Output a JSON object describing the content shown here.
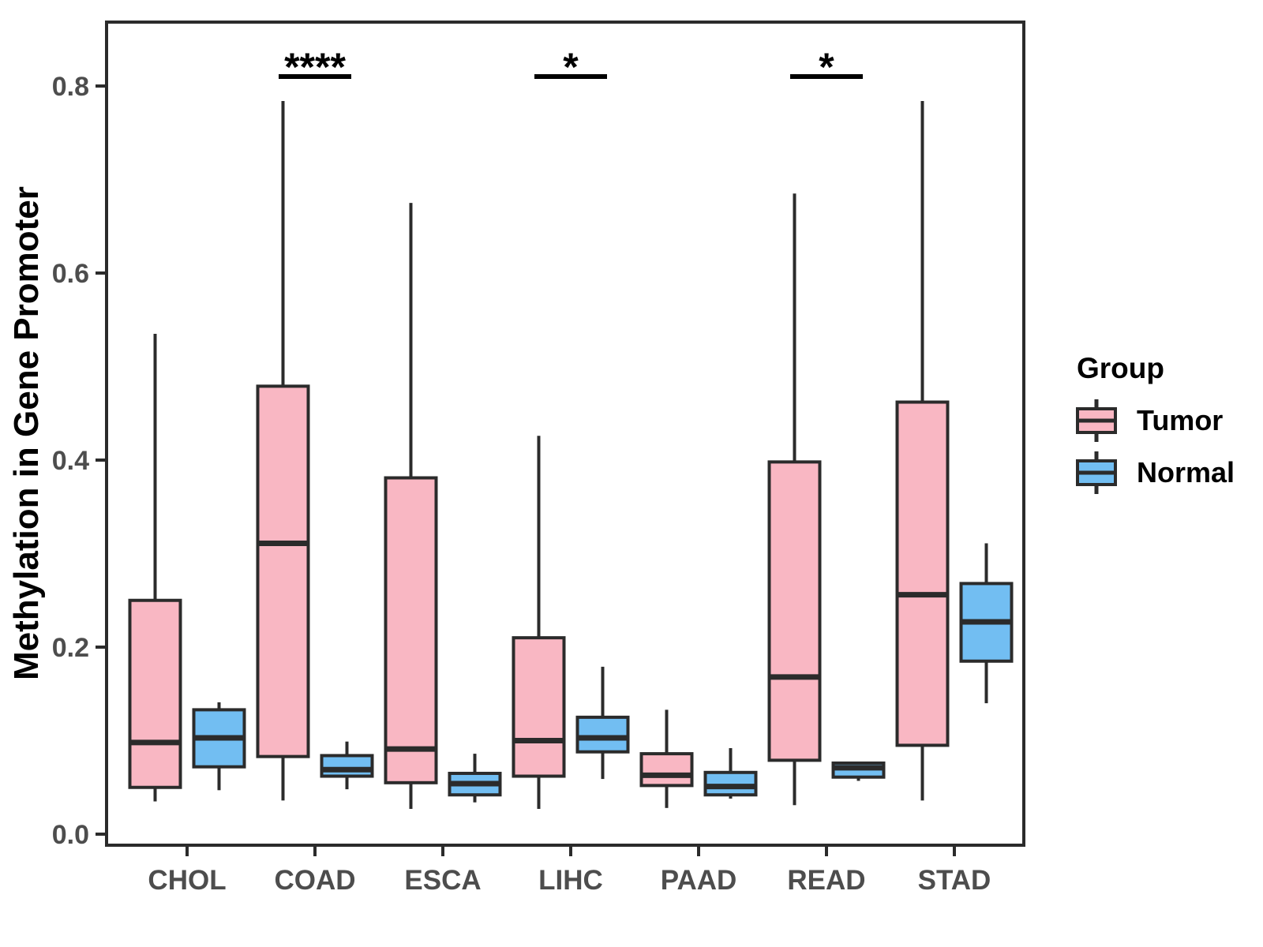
{
  "chart_data": {
    "type": "grouped_boxplot",
    "title": "",
    "xlabel": "",
    "ylabel": "Methylation in Gene Promoter",
    "categories": [
      "CHOL",
      "COAD",
      "ESCA",
      "LIHC",
      "PAAD",
      "READ",
      "STAD"
    ],
    "yticks": [
      0.0,
      0.2,
      0.4,
      0.6,
      0.8
    ],
    "ylim": [
      -0.012,
      0.872
    ],
    "grid": false,
    "legend": {
      "title": "Group",
      "position": "right"
    },
    "series": [
      {
        "name": "Tumor",
        "color": "#F9B7C3",
        "boxes": [
          {
            "low": 0.035,
            "q1": 0.05,
            "median": 0.098,
            "q3": 0.25,
            "high": 0.535
          },
          {
            "low": 0.036,
            "q1": 0.083,
            "median": 0.311,
            "q3": 0.479,
            "high": 0.784
          },
          {
            "low": 0.027,
            "q1": 0.055,
            "median": 0.091,
            "q3": 0.381,
            "high": 0.675
          },
          {
            "low": 0.027,
            "q1": 0.062,
            "median": 0.1,
            "q3": 0.21,
            "high": 0.426
          },
          {
            "low": 0.028,
            "q1": 0.052,
            "median": 0.063,
            "q3": 0.086,
            "high": 0.133
          },
          {
            "low": 0.031,
            "q1": 0.079,
            "median": 0.168,
            "q3": 0.398,
            "high": 0.685
          },
          {
            "low": 0.036,
            "q1": 0.095,
            "median": 0.256,
            "q3": 0.462,
            "high": 0.784
          }
        ]
      },
      {
        "name": "Normal",
        "color": "#72BEF2",
        "boxes": [
          {
            "low": 0.047,
            "q1": 0.072,
            "median": 0.103,
            "q3": 0.133,
            "high": 0.141
          },
          {
            "low": 0.048,
            "q1": 0.062,
            "median": 0.069,
            "q3": 0.084,
            "high": 0.099
          },
          {
            "low": 0.034,
            "q1": 0.042,
            "median": 0.054,
            "q3": 0.065,
            "high": 0.086
          },
          {
            "low": 0.059,
            "q1": 0.088,
            "median": 0.103,
            "q3": 0.125,
            "high": 0.179
          },
          {
            "low": 0.038,
            "q1": 0.042,
            "median": 0.051,
            "q3": 0.066,
            "high": 0.092
          },
          {
            "low": 0.057,
            "q1": 0.061,
            "median": 0.071,
            "q3": 0.076,
            "high": 0.076
          },
          {
            "low": 0.14,
            "q1": 0.185,
            "median": 0.227,
            "q3": 0.268,
            "high": 0.311
          }
        ]
      }
    ],
    "annotations": [
      {
        "category": "COAD",
        "label": "****"
      },
      {
        "category": "LIHC",
        "label": "*"
      },
      {
        "category": "READ",
        "label": "*"
      }
    ],
    "style": {
      "box_border": "#2B2B2B",
      "median_color": "#2B2B2B",
      "whisker_color": "#2B2B2B",
      "panel_border": "#2B2B2B",
      "axis_text_color": "#4D4D4D",
      "annotation_color": "#000000",
      "background": "#FFFFFF"
    }
  }
}
